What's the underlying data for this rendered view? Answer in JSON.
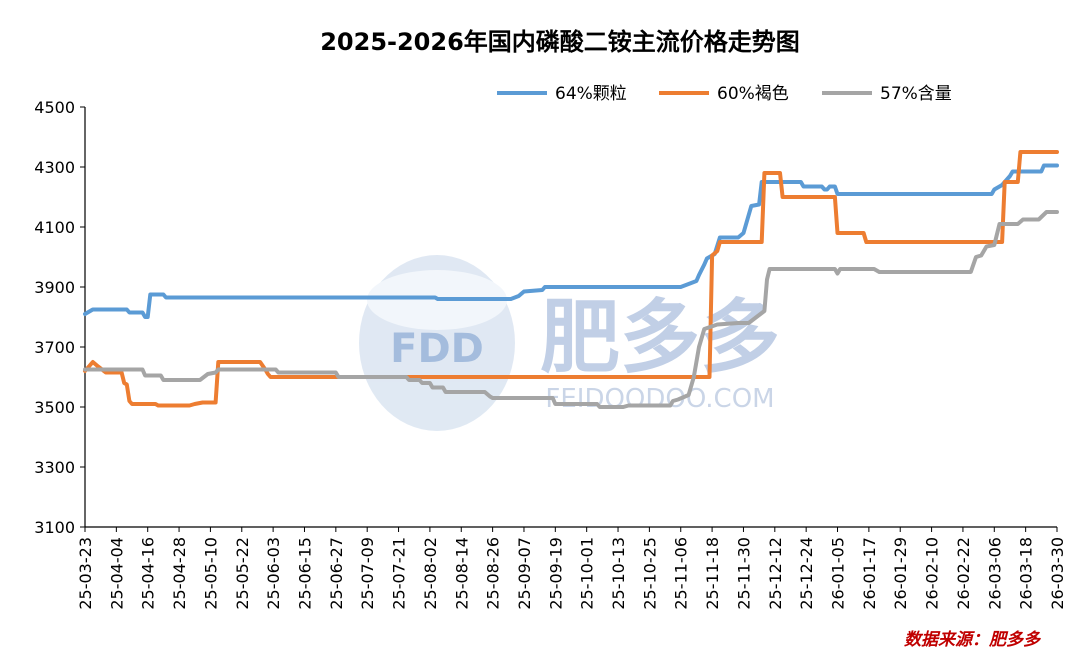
{
  "chart_data": {
    "type": "line",
    "title": "2025-2026年国内磷酸二铵主流价格走势图",
    "xlabel": "",
    "ylabel": "",
    "ylim": [
      3100,
      4500
    ],
    "yticks": [
      3100,
      3300,
      3500,
      3700,
      3900,
      4100,
      4300,
      4500
    ],
    "x_range": [
      "25-03-23",
      "26-03-30"
    ],
    "x_ticks": [
      "25-03-23",
      "25-04-04",
      "25-04-16",
      "25-04-28",
      "25-05-10",
      "25-05-22",
      "25-06-03",
      "25-06-15",
      "25-06-27",
      "25-07-09",
      "25-07-21",
      "25-08-02",
      "25-08-14",
      "25-08-26",
      "25-09-07",
      "25-09-19",
      "25-10-01",
      "25-10-13",
      "25-10-25",
      "25-11-06",
      "25-11-18",
      "25-11-30",
      "25-12-12",
      "25-12-24",
      "26-01-05",
      "26-01-17",
      "26-01-29",
      "26-02-10",
      "26-02-22",
      "26-03-06",
      "26-03-18",
      "26-03-30"
    ],
    "legend_position": "top-right",
    "grid": false,
    "series": [
      {
        "name": "64%颗粒",
        "color": "#5b9bd5",
        "points": [
          [
            "25-03-23",
            3810
          ],
          [
            "25-03-26",
            3825
          ],
          [
            "25-04-08",
            3825
          ],
          [
            "25-04-09",
            3815
          ],
          [
            "25-04-14",
            3815
          ],
          [
            "25-04-15",
            3800
          ],
          [
            "25-04-16",
            3800
          ],
          [
            "25-04-17",
            3875
          ],
          [
            "25-04-22",
            3875
          ],
          [
            "25-04-23",
            3865
          ],
          [
            "25-08-04",
            3865
          ],
          [
            "25-08-05",
            3860
          ],
          [
            "25-09-02",
            3860
          ],
          [
            "25-09-05",
            3870
          ],
          [
            "25-09-07",
            3885
          ],
          [
            "25-09-14",
            3890
          ],
          [
            "25-09-15",
            3900
          ],
          [
            "25-11-06",
            3900
          ],
          [
            "25-11-09",
            3910
          ],
          [
            "25-11-12",
            3920
          ],
          [
            "25-11-13",
            3940
          ],
          [
            "25-11-15",
            3975
          ],
          [
            "25-11-16",
            3995
          ],
          [
            "25-11-19",
            4010
          ],
          [
            "25-11-21",
            4065
          ],
          [
            "25-11-28",
            4065
          ],
          [
            "25-11-30",
            4080
          ],
          [
            "25-12-02",
            4140
          ],
          [
            "25-12-03",
            4170
          ],
          [
            "25-12-06",
            4175
          ],
          [
            "25-12-07",
            4250
          ],
          [
            "25-12-22",
            4250
          ],
          [
            "25-12-23",
            4235
          ],
          [
            "25-12-30",
            4235
          ],
          [
            "25-12-31",
            4225
          ],
          [
            "26-01-01",
            4225
          ],
          [
            "26-01-02",
            4235
          ],
          [
            "26-01-04",
            4235
          ],
          [
            "26-01-05",
            4210
          ],
          [
            "26-03-05",
            4210
          ],
          [
            "26-03-06",
            4225
          ],
          [
            "26-03-09",
            4240
          ],
          [
            "26-03-12",
            4270
          ],
          [
            "26-03-13",
            4285
          ],
          [
            "26-03-24",
            4285
          ],
          [
            "26-03-25",
            4305
          ],
          [
            "26-03-30",
            4305
          ]
        ]
      },
      {
        "name": "60%褐色",
        "color": "#ed7d31",
        "points": [
          [
            "25-03-23",
            3620
          ],
          [
            "25-03-25",
            3640
          ],
          [
            "25-03-26",
            3650
          ],
          [
            "25-03-28",
            3635
          ],
          [
            "25-03-31",
            3615
          ],
          [
            "25-04-06",
            3615
          ],
          [
            "25-04-07",
            3580
          ],
          [
            "25-04-08",
            3575
          ],
          [
            "25-04-09",
            3520
          ],
          [
            "25-04-10",
            3510
          ],
          [
            "25-04-19",
            3510
          ],
          [
            "25-04-20",
            3505
          ],
          [
            "25-05-02",
            3505
          ],
          [
            "25-05-04",
            3510
          ],
          [
            "25-05-07",
            3515
          ],
          [
            "25-05-12",
            3515
          ],
          [
            "25-05-13",
            3650
          ],
          [
            "25-05-29",
            3650
          ],
          [
            "25-05-31",
            3625
          ],
          [
            "25-06-01",
            3610
          ],
          [
            "25-06-02",
            3600
          ],
          [
            "25-11-17",
            3600
          ],
          [
            "25-11-18",
            4005
          ],
          [
            "25-11-20",
            4020
          ],
          [
            "25-11-21",
            4050
          ],
          [
            "25-12-07",
            4050
          ],
          [
            "25-12-08",
            4280
          ],
          [
            "25-12-14",
            4280
          ],
          [
            "25-12-15",
            4200
          ],
          [
            "26-01-04",
            4200
          ],
          [
            "26-01-05",
            4080
          ],
          [
            "26-01-15",
            4080
          ],
          [
            "26-01-16",
            4050
          ],
          [
            "26-03-09",
            4050
          ],
          [
            "26-03-10",
            4250
          ],
          [
            "26-03-15",
            4250
          ],
          [
            "26-03-16",
            4350
          ],
          [
            "26-03-30",
            4350
          ]
        ]
      },
      {
        "name": "57%含量",
        "color": "#a5a5a5",
        "points": [
          [
            "25-03-23",
            3625
          ],
          [
            "25-04-14",
            3625
          ],
          [
            "25-04-15",
            3605
          ],
          [
            "25-04-21",
            3605
          ],
          [
            "25-04-22",
            3590
          ],
          [
            "25-05-06",
            3590
          ],
          [
            "25-05-09",
            3610
          ],
          [
            "25-05-12",
            3615
          ],
          [
            "25-05-13",
            3625
          ],
          [
            "25-06-04",
            3625
          ],
          [
            "25-06-05",
            3615
          ],
          [
            "25-06-27",
            3615
          ],
          [
            "25-06-28",
            3600
          ],
          [
            "25-07-24",
            3600
          ],
          [
            "25-07-25",
            3590
          ],
          [
            "25-07-29",
            3590
          ],
          [
            "25-07-30",
            3580
          ],
          [
            "25-08-02",
            3580
          ],
          [
            "25-08-03",
            3565
          ],
          [
            "25-08-07",
            3565
          ],
          [
            "25-08-08",
            3550
          ],
          [
            "25-08-23",
            3550
          ],
          [
            "25-08-25",
            3535
          ],
          [
            "25-08-26",
            3530
          ],
          [
            "25-09-18",
            3530
          ],
          [
            "25-09-19",
            3510
          ],
          [
            "25-10-05",
            3510
          ],
          [
            "25-10-06",
            3500
          ],
          [
            "25-10-15",
            3500
          ],
          [
            "25-10-17",
            3505
          ],
          [
            "25-11-02",
            3505
          ],
          [
            "25-11-03",
            3520
          ],
          [
            "25-11-05",
            3525
          ],
          [
            "25-11-09",
            3540
          ],
          [
            "25-11-11",
            3600
          ],
          [
            "25-11-13",
            3700
          ],
          [
            "25-11-15",
            3760
          ],
          [
            "25-11-20",
            3775
          ],
          [
            "25-11-28",
            3780
          ],
          [
            "25-12-02",
            3780
          ],
          [
            "25-12-05",
            3800
          ],
          [
            "25-12-08",
            3820
          ],
          [
            "25-12-09",
            3925
          ],
          [
            "25-12-10",
            3960
          ],
          [
            "26-01-04",
            3960
          ],
          [
            "26-01-05",
            3945
          ],
          [
            "26-01-06",
            3960
          ],
          [
            "26-01-19",
            3960
          ],
          [
            "26-01-21",
            3950
          ],
          [
            "26-02-25",
            3950
          ],
          [
            "26-02-27",
            4000
          ],
          [
            "26-03-01",
            4005
          ],
          [
            "26-03-03",
            4035
          ],
          [
            "26-03-06",
            4040
          ],
          [
            "26-03-08",
            4110
          ],
          [
            "26-03-15",
            4110
          ],
          [
            "26-03-17",
            4125
          ],
          [
            "26-03-23",
            4125
          ],
          [
            "26-03-26",
            4150
          ],
          [
            "26-03-30",
            4150
          ]
        ]
      }
    ],
    "annotations": [
      "数据来源：肥多多"
    ]
  },
  "watermark": {
    "logo_text": "FDD",
    "brand_text": "肥多多",
    "site_text": "FEIDOODOO.COM",
    "color": "#7a9bc9"
  }
}
